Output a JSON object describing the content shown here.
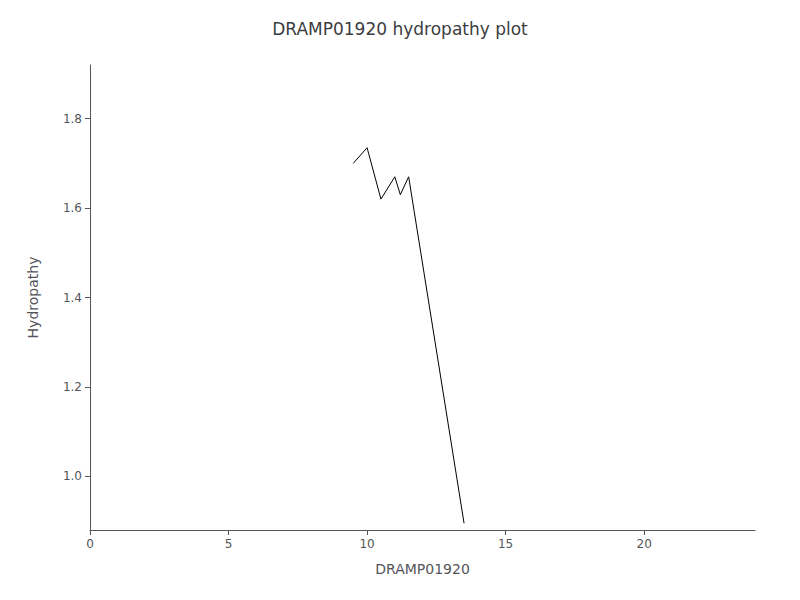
{
  "chart_data": {
    "type": "line",
    "title": "DRAMP01920 hydropathy plot",
    "xlabel": "DRAMP01920",
    "ylabel": "Hydropathy",
    "x": [
      9.5,
      10.0,
      10.5,
      11.0,
      11.2,
      11.5,
      13.5
    ],
    "values": [
      1.7,
      1.735,
      1.62,
      1.67,
      1.63,
      1.67,
      0.895
    ],
    "color": "#000000",
    "xlim": [
      0,
      24
    ],
    "ylim": [
      0.88,
      1.92
    ],
    "xticks": [
      0,
      5,
      10,
      15,
      20
    ],
    "yticks": [
      {
        "value": 1.0,
        "label": "1.0"
      },
      1.2,
      1.4,
      1.6,
      1.8
    ],
    "grid": false
  }
}
